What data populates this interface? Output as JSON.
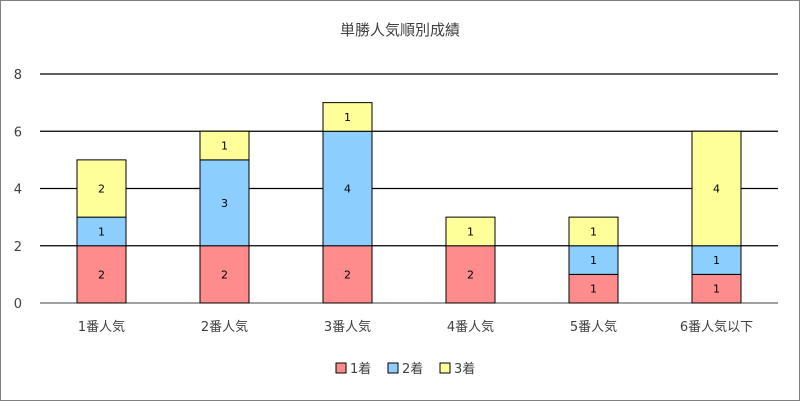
{
  "chart_data": {
    "type": "bar",
    "stacked": true,
    "title": "単勝人気順別成績",
    "xlabel": "",
    "ylabel": "",
    "ylim": [
      0,
      8
    ],
    "yticks": [
      0,
      2,
      4,
      6,
      8
    ],
    "grid": true,
    "legend_position": "bottom",
    "categories": [
      "1番人気",
      "2番人気",
      "3番人気",
      "4番人気",
      "5番人気",
      "6番人気以下"
    ],
    "series": [
      {
        "name": "1着",
        "values": [
          2,
          2,
          2,
          2,
          1,
          1
        ],
        "color": "#ff8c8c"
      },
      {
        "name": "2着",
        "values": [
          1,
          3,
          4,
          0,
          1,
          1
        ],
        "color": "#8ccfff"
      },
      {
        "name": "3着",
        "values": [
          2,
          1,
          1,
          1,
          1,
          4
        ],
        "color": "#ffff99"
      }
    ]
  }
}
